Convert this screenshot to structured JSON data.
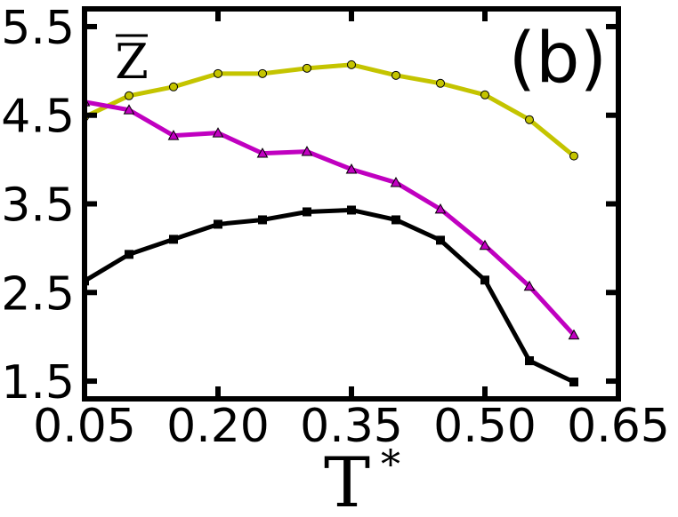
{
  "chart_data": {
    "type": "line",
    "panel_label": "(b)",
    "xlabel": "T",
    "xlabel_superscript": "*",
    "ylabel": "Z",
    "xlim": [
      0.05,
      0.65
    ],
    "ylim": [
      1.3,
      5.7
    ],
    "x_ticks": [
      0.05,
      0.2,
      0.35,
      0.5,
      0.65
    ],
    "x_tick_labels": [
      "0.05",
      "0.20",
      "0.35",
      "0.50",
      "0.65"
    ],
    "y_ticks": [
      1.5,
      2.5,
      3.5,
      4.5,
      5.5
    ],
    "y_tick_labels": [
      "1.5",
      "2.5",
      "3.5",
      "4.5",
      "5.5"
    ],
    "legend": "none",
    "grid": false,
    "series": [
      {
        "color": "#c4c400",
        "marker": "circle",
        "x": [
          0.05,
          0.1,
          0.15,
          0.2,
          0.25,
          0.3,
          0.35,
          0.4,
          0.45,
          0.5,
          0.55,
          0.6
        ],
        "values": [
          4.48,
          4.72,
          4.82,
          4.97,
          4.97,
          5.03,
          5.07,
          4.95,
          4.86,
          4.73,
          4.45,
          4.04
        ]
      },
      {
        "color": "#c000c0",
        "marker": "triangle",
        "x": [
          0.05,
          0.1,
          0.15,
          0.2,
          0.25,
          0.3,
          0.35,
          0.4,
          0.45,
          0.5,
          0.55,
          0.6
        ],
        "values": [
          4.65,
          4.56,
          4.27,
          4.3,
          4.07,
          4.09,
          3.89,
          3.74,
          3.44,
          3.03,
          2.57,
          2.02
        ]
      },
      {
        "color": "#000000",
        "marker": "square",
        "x": [
          0.05,
          0.1,
          0.15,
          0.2,
          0.25,
          0.3,
          0.35,
          0.4,
          0.45,
          0.5,
          0.55,
          0.6
        ],
        "values": [
          2.63,
          2.93,
          3.1,
          3.27,
          3.32,
          3.41,
          3.43,
          3.32,
          3.09,
          2.64,
          1.73,
          1.49
        ]
      }
    ]
  }
}
